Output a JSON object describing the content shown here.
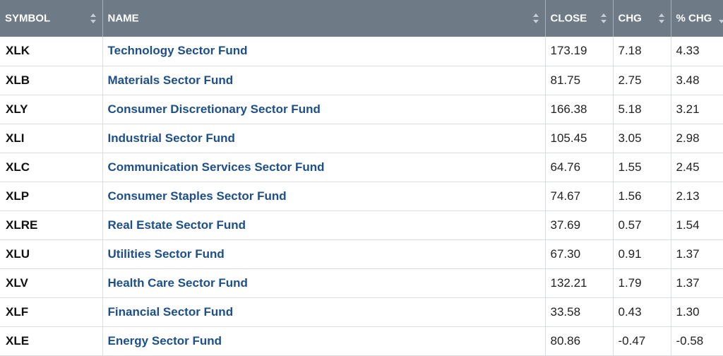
{
  "headers": {
    "symbol": "SYMBOL",
    "name": "NAME",
    "close": "CLOSE",
    "chg": "CHG",
    "pct_chg": "% CHG"
  },
  "icons": {
    "sort": "sort-arrows-icon"
  },
  "colors": {
    "header_bg": "#6f7a87",
    "link": "#1d4f8a",
    "row_border": "#d9dde1"
  },
  "rows": [
    {
      "symbol": "XLK",
      "name": "Technology Sector Fund",
      "close": "173.19",
      "chg": "7.18",
      "pct": "4.33"
    },
    {
      "symbol": "XLB",
      "name": "Materials Sector Fund",
      "close": "81.75",
      "chg": "2.75",
      "pct": "3.48"
    },
    {
      "symbol": "XLY",
      "name": "Consumer Discretionary Sector Fund",
      "close": "166.38",
      "chg": "5.18",
      "pct": "3.21"
    },
    {
      "symbol": "XLI",
      "name": "Industrial Sector Fund",
      "close": "105.45",
      "chg": "3.05",
      "pct": "2.98"
    },
    {
      "symbol": "XLC",
      "name": "Communication Services Sector Fund",
      "close": "64.76",
      "chg": "1.55",
      "pct": "2.45"
    },
    {
      "symbol": "XLP",
      "name": "Consumer Staples Sector Fund",
      "close": "74.67",
      "chg": "1.56",
      "pct": "2.13"
    },
    {
      "symbol": "XLRE",
      "name": "Real Estate Sector Fund",
      "close": "37.69",
      "chg": "0.57",
      "pct": "1.54"
    },
    {
      "symbol": "XLU",
      "name": "Utilities Sector Fund",
      "close": "67.30",
      "chg": "0.91",
      "pct": "1.37"
    },
    {
      "symbol": "XLV",
      "name": "Health Care Sector Fund",
      "close": "132.21",
      "chg": "1.79",
      "pct": "1.37"
    },
    {
      "symbol": "XLF",
      "name": "Financial Sector Fund",
      "close": "33.58",
      "chg": "0.43",
      "pct": "1.30"
    },
    {
      "symbol": "XLE",
      "name": "Energy Sector Fund",
      "close": "80.86",
      "chg": "-0.47",
      "pct": "-0.58"
    }
  ]
}
